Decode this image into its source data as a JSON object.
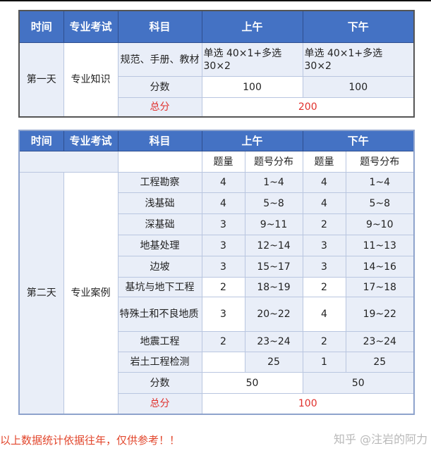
{
  "table1": {
    "headers": [
      "时间",
      "专业考试",
      "科目",
      "上午",
      "下午"
    ],
    "day": "第一天",
    "exam": "专业知识",
    "subject": "规范、手册、教材",
    "am_format": "单选 40×1+多选 30×2",
    "pm_format": "单选 40×1+多选 30×2",
    "score_label": "分数",
    "am_score": "100",
    "pm_score": "100",
    "total_label": "总分",
    "total": "200"
  },
  "table2": {
    "headers": [
      "时间",
      "专业考试",
      "科目",
      "上午",
      "下午"
    ],
    "subheaders": [
      "题量",
      "题号分布",
      "题量",
      "题号分布"
    ],
    "day": "第二天",
    "exam": "专业案例",
    "rows": [
      {
        "subject": "工程勘察",
        "am_count": "4",
        "am_range": "1~4",
        "pm_count": "4",
        "pm_range": "1~4"
      },
      {
        "subject": "浅基础",
        "am_count": "4",
        "am_range": "5~8",
        "pm_count": "4",
        "pm_range": "5~8"
      },
      {
        "subject": "深基础",
        "am_count": "3",
        "am_range": "9~11",
        "pm_count": "2",
        "pm_range": "9~10"
      },
      {
        "subject": "地基处理",
        "am_count": "3",
        "am_range": "12~14",
        "pm_count": "3",
        "pm_range": "11~13"
      },
      {
        "subject": "边坡",
        "am_count": "3",
        "am_range": "15~17",
        "pm_count": "3",
        "pm_range": "14~16"
      },
      {
        "subject": "基坑与地下工程",
        "am_count": "2",
        "am_range": "18~19",
        "pm_count": "2",
        "pm_range": "17~18"
      },
      {
        "subject": "特殊土和不良地质",
        "am_count": "3",
        "am_range": "20~22",
        "pm_count": "4",
        "pm_range": "19~22"
      },
      {
        "subject": "地震工程",
        "am_count": "2",
        "am_range": "23~24",
        "pm_count": "2",
        "pm_range": "23~24"
      },
      {
        "subject": "岩土工程检测",
        "am_count": "",
        "am_range": "25",
        "pm_count": "1",
        "pm_range": "25"
      }
    ],
    "score_label": "分数",
    "am_score": "50",
    "pm_score": "50",
    "total_label": "总分",
    "total": "100"
  },
  "footer": {
    "note": "以上数据统计依据往年，仅供参考！！",
    "watermark": "知乎 @注岩的阿力"
  }
}
